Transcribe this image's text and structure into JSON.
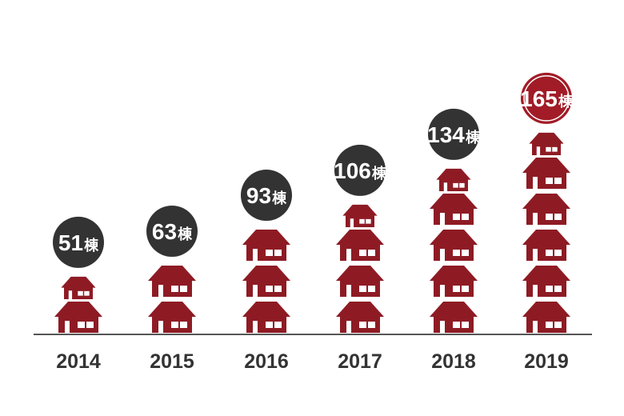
{
  "chart_data": {
    "type": "bar",
    "categories": [
      "2014",
      "2015",
      "2016",
      "2017",
      "2018",
      "2019"
    ],
    "values": [
      51,
      63,
      93,
      106,
      134,
      165
    ],
    "value_labels": [
      "51棟",
      "63棟",
      "93棟",
      "106棟",
      "134棟",
      "165棟"
    ],
    "unit": "棟",
    "xlabel": "",
    "ylabel": "",
    "ylim": [
      0,
      180
    ],
    "grid": false,
    "icon": "house-icon",
    "colors": {
      "house": "#8e1b24",
      "bubble": "#333333",
      "highlight_bubble": "#a11c27",
      "highlight_ring": "#ffffff",
      "baseline": "#555555",
      "year_text": "#333333"
    }
  }
}
